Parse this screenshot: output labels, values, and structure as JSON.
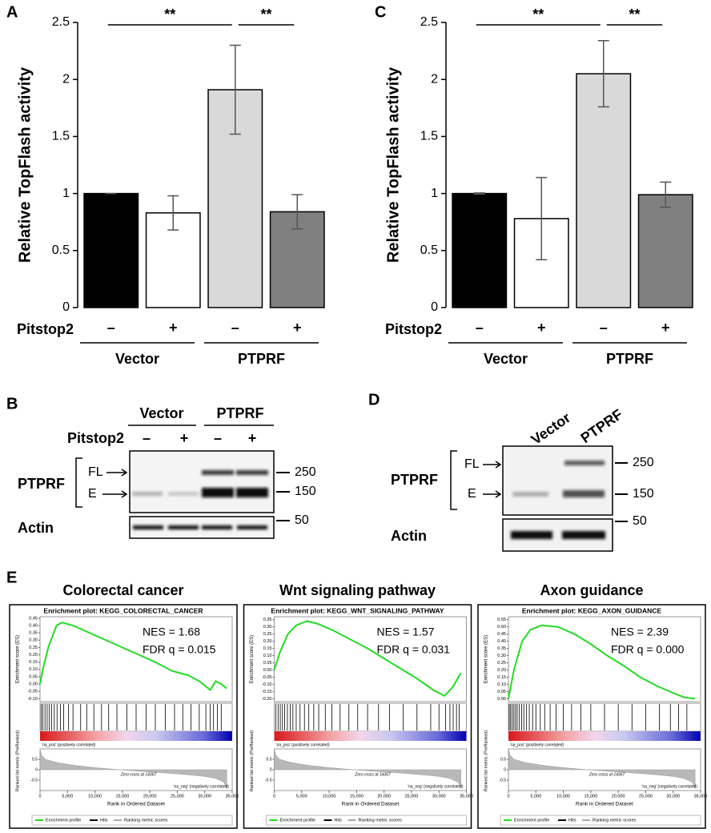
{
  "chart_data": [
    {
      "type": "bar",
      "panel": "A",
      "ylabel": "Relative TopFlash activity",
      "categories": [
        "–",
        "+",
        "–",
        "+"
      ],
      "category_label": "Pitstop2",
      "groups": [
        "Vector",
        "PTPRF"
      ],
      "values": [
        1,
        0.83,
        1.91,
        0.84
      ],
      "errors": [
        0,
        0.15,
        0.39,
        0.15
      ],
      "colors": [
        "#000000",
        "#ffffff",
        "#d9d9d9",
        "#808080"
      ],
      "ylim": [
        0,
        2.5
      ],
      "yticks": [
        0,
        0.5,
        1,
        1.5,
        2,
        2.5
      ],
      "significance": [
        {
          "from": 0,
          "to": 2,
          "label": "**"
        },
        {
          "from": 2,
          "to": 3,
          "label": "**"
        }
      ]
    },
    {
      "type": "bar",
      "panel": "C",
      "ylabel": "Relative TopFlash activity",
      "categories": [
        "–",
        "+",
        "–",
        "+"
      ],
      "category_label": "Pitstop2",
      "groups": [
        "Vector",
        "PTPRF"
      ],
      "values": [
        1,
        0.78,
        2.05,
        0.99
      ],
      "errors": [
        0.005,
        0.36,
        0.29,
        0.11
      ],
      "colors": [
        "#000000",
        "#ffffff",
        "#d9d9d9",
        "#808080"
      ],
      "ylim": [
        0,
        2.5
      ],
      "yticks": [
        0,
        0.5,
        1,
        1.5,
        2,
        2.5
      ],
      "significance": [
        {
          "from": 0,
          "to": 2,
          "label": "**"
        },
        {
          "from": 2,
          "to": 3,
          "label": "**"
        }
      ]
    },
    {
      "type": "gsea",
      "title": "Colorectal cancer",
      "plot_title": "Enrichment plot: KEGG_COLORECTAL_CANCER",
      "annotations": [
        "NES = 1.68",
        "FDR q = 0.015"
      ],
      "ylabel": "Enrichment score (ES)",
      "color": "#22dd22",
      "x": [
        0,
        500,
        1500,
        3000,
        4000,
        6000,
        9000,
        12000,
        15000,
        18000,
        21000,
        24000,
        27000,
        29000,
        31000,
        32000,
        33000,
        34000
      ],
      "values": [
        0,
        0.1,
        0.25,
        0.4,
        0.42,
        0.4,
        0.35,
        0.3,
        0.25,
        0.2,
        0.15,
        0.09,
        0.06,
        0.02,
        -0.04,
        0.02,
        0.0,
        -0.03
      ],
      "ylim": [
        -0.12,
        0.46
      ],
      "yticks": [
        0.45,
        {
          "value": 0.4,
          "label": "0.40"
        },
        0.35,
        {
          "value": 0.3,
          "label": "0.30"
        },
        0.25,
        {
          "value": 0.2,
          "label": "0.20"
        },
        0.15,
        {
          "value": 0.1,
          "label": "0.10"
        },
        0.05,
        {
          "value": 0,
          "label": "0.00"
        },
        -0.05,
        {
          "value": -0.1,
          "label": "-0.10"
        }
      ],
      "hits": [
        200,
        500,
        900,
        1300,
        1700,
        2100,
        2600,
        3100,
        3700,
        4300,
        5200,
        6000,
        7400,
        8500,
        9800,
        11200,
        12500,
        14000,
        15800,
        17500,
        19300,
        21000,
        22800,
        24500,
        26000,
        27500,
        29000,
        30200,
        31000,
        31600,
        32300,
        33000
      ]
    },
    {
      "type": "gsea",
      "title": "Wnt signaling pathway",
      "plot_title": "Enrichment plot: KEGG_WNT_SIGNALING_PATHWAY",
      "annotations": [
        "NES = 1.57",
        "FDR q = 0.031"
      ],
      "ylabel": "Enrichment score (ES)",
      "color": "#22dd22",
      "x": [
        0,
        1000,
        2500,
        4000,
        6000,
        8000,
        11000,
        14000,
        17000,
        20000,
        23000,
        26000,
        29000,
        31000,
        32500,
        34000
      ],
      "values": [
        0,
        0.12,
        0.25,
        0.31,
        0.34,
        0.32,
        0.27,
        0.21,
        0.15,
        0.08,
        0.01,
        -0.06,
        -0.14,
        -0.18,
        -0.12,
        -0.02
      ],
      "ylim": [
        -0.22,
        0.37
      ],
      "yticks": [
        0.35,
        {
          "value": 0.3,
          "label": "0.30"
        },
        0.25,
        {
          "value": 0.2,
          "label": "0.20"
        },
        0.15,
        {
          "value": 0.1,
          "label": "0.10"
        },
        0.05,
        {
          "value": 0,
          "label": "0.00"
        },
        -0.05,
        {
          "value": -0.1,
          "label": "-0.10"
        },
        -0.15,
        {
          "value": -0.2,
          "label": "-0.20"
        }
      ],
      "hits": [
        300,
        700,
        1100,
        1500,
        1900,
        2400,
        2900,
        3400,
        4000,
        4700,
        5500,
        6300,
        7200,
        8100,
        9300,
        10500,
        12000,
        13600,
        15200,
        17000,
        19000,
        21000,
        23500,
        26000,
        28500,
        30000,
        31200,
        32000,
        32600,
        33200,
        33700
      ]
    },
    {
      "type": "gsea",
      "title": "Axon guidance",
      "plot_title": "Enrichment plot: KEGG_AXON_GUIDANCE",
      "annotations": [
        "NES = 2.39",
        "FDR q = 0.000"
      ],
      "ylabel": "Enrichment score (ES)",
      "color": "#22dd22",
      "x": [
        0,
        1000,
        2500,
        4000,
        6000,
        9000,
        12000,
        15000,
        18000,
        21000,
        24000,
        27000,
        30000,
        32000,
        34000
      ],
      "values": [
        0,
        0.2,
        0.4,
        0.48,
        0.51,
        0.5,
        0.45,
        0.38,
        0.3,
        0.23,
        0.15,
        0.09,
        0.04,
        0.01,
        0.0
      ],
      "ylim": [
        -0.02,
        0.57
      ],
      "yticks": [
        0.55,
        {
          "value": 0.5,
          "label": "0.50"
        },
        0.45,
        {
          "value": 0.4,
          "label": "0.40"
        },
        0.35,
        {
          "value": 0.3,
          "label": "0.30"
        },
        0.25,
        {
          "value": 0.2,
          "label": "0.20"
        },
        0.15,
        {
          "value": 0.1,
          "label": "0.10"
        },
        0.05,
        {
          "value": 0,
          "label": "0.00"
        }
      ],
      "hits": [
        150,
        400,
        700,
        1000,
        1300,
        1600,
        2000,
        2400,
        2800,
        3300,
        3800,
        4400,
        5000,
        5800,
        6600,
        7600,
        8700,
        10000,
        11500,
        13200,
        15000,
        17500,
        20000,
        22500,
        25000,
        27500,
        29500,
        31000,
        32500
      ]
    }
  ],
  "gsea_common": {
    "panel": "E",
    "ylabel": "Ranked list metric (PreRanked)",
    "xlabel": "Rank in Ordered Dataset",
    "zero_cross": "Zero cross at 14367",
    "pos_label": "'na_pos' (positively correlated)",
    "neg_label": "'na_neg' (negatively correlated)",
    "x": [
      0,
      300,
      1000,
      3000,
      6000,
      10000,
      14367,
      18000,
      22000,
      26000,
      30000,
      32000,
      33500,
      34000
    ],
    "values": [
      1,
      0.7,
      0.5,
      0.35,
      0.22,
      0.1,
      0,
      -0.07,
      -0.14,
      -0.22,
      -0.32,
      -0.42,
      -0.6,
      -0.9
    ],
    "ylim": [
      -1,
      1
    ],
    "yticks": [
      0.5,
      0,
      -0.5
    ],
    "xlim": [
      0,
      35000
    ],
    "xticks": [
      0,
      {
        "value": 5000,
        "label": "5,000"
      },
      {
        "value": 10000,
        "label": "10,000"
      },
      {
        "value": 15000,
        "label": "15,000"
      },
      {
        "value": 20000,
        "label": "20,000"
      },
      {
        "value": 25000,
        "label": "25,000"
      },
      {
        "value": 30000,
        "label": "30,000"
      },
      {
        "value": 35000,
        "label": "35,000"
      }
    ],
    "legend": [
      "Enrichment profile",
      "Hits",
      "Ranking metric scores"
    ]
  },
  "blots": [
    {
      "panel": "B",
      "groups": [
        "Vector",
        "PTPRF"
      ],
      "treatment": "Pitstop2",
      "lanes": [
        "–",
        "+",
        "–",
        "+"
      ],
      "protein": "PTPRF",
      "forms": [
        "FL",
        "E"
      ],
      "loading": "Actin",
      "markers": [
        250,
        150,
        50
      ]
    },
    {
      "panel": "D",
      "groups": [
        "Vector",
        "PTPRF"
      ],
      "protein": "PTPRF",
      "forms": [
        "FL",
        "E"
      ],
      "loading": "Actin",
      "markers": [
        250,
        150,
        50
      ]
    }
  ]
}
